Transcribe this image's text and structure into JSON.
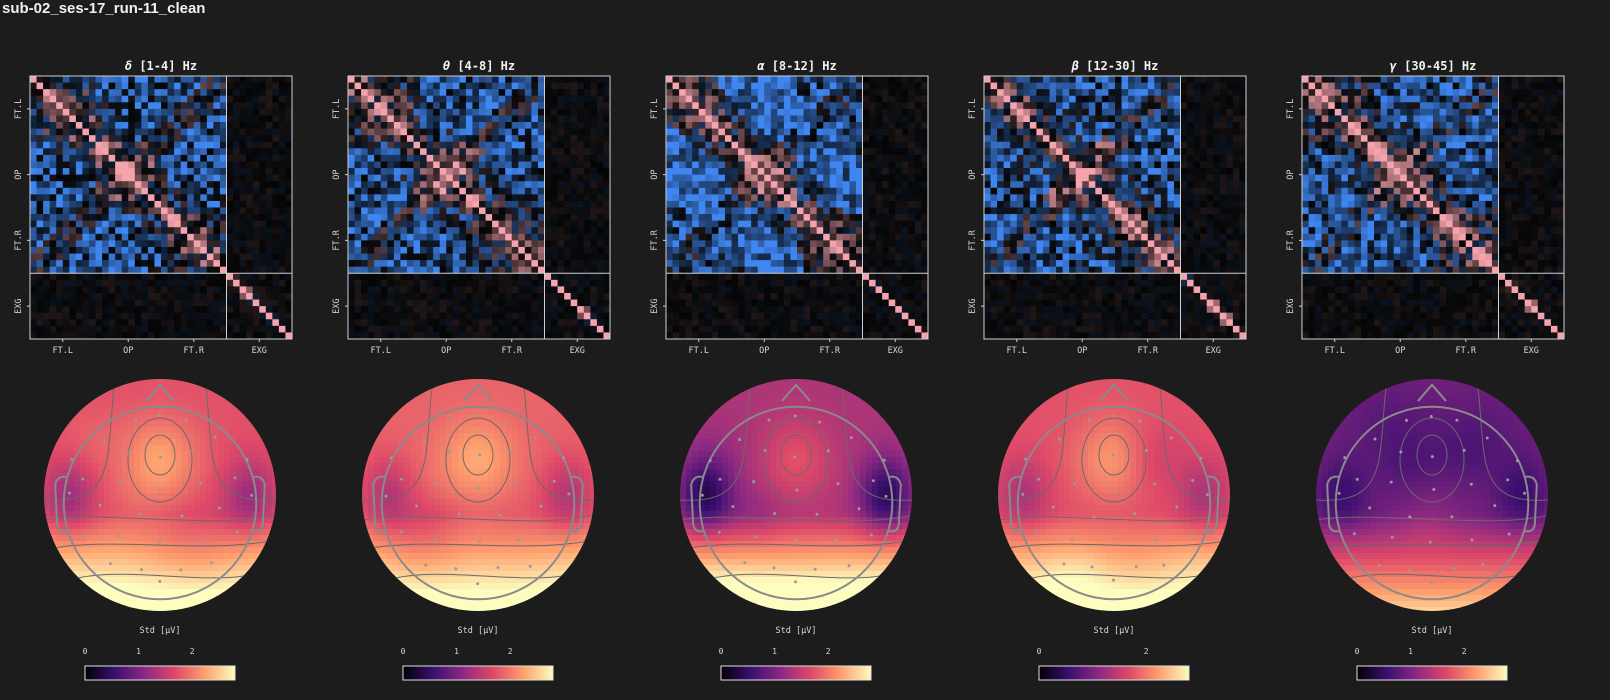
{
  "window": {
    "title": "sub-02_ses-17_run-11_clean"
  },
  "colors": {
    "background": "#1c1c1c",
    "axis": "#d8d8d8",
    "contour": "#6a6a6a",
    "sensor": "#9a9a9a",
    "head": "#8a8a8a"
  },
  "chart_data": {
    "type": "heatmap",
    "panels": [
      {
        "id": "delta",
        "title_symbol": "δ",
        "title": "[1-4] Hz",
        "matrix": {
          "type": "heatmap",
          "x_tick_labels": [
            "FT.L",
            "OP",
            "FT.R",
            "EXG"
          ],
          "y_tick_labels": [
            "FT.L",
            "OP",
            "FT.R",
            "EXG"
          ],
          "diverging_colormap": [
            "#3f86f0",
            "#050505",
            "#f5a3ac"
          ],
          "n_channels": 40,
          "n_exg_channels": 10
        },
        "topomap": {
          "type": "heatmap",
          "colorbar_label": "Std [µV]",
          "colorbar_ticks": [
            "0",
            "1",
            "2"
          ],
          "colorbar_tick_values": [
            0,
            1,
            2
          ],
          "colorbar_max": 2.8,
          "colormap": [
            "#000004",
            "#3b0f70",
            "#8c2981",
            "#de4968",
            "#fe9f6d",
            "#fcfdbf"
          ]
        }
      },
      {
        "id": "theta",
        "title_symbol": "θ",
        "title": "[4-8] Hz",
        "matrix": {
          "type": "heatmap",
          "x_tick_labels": [
            "FT.L",
            "OP",
            "FT.R",
            "EXG"
          ],
          "y_tick_labels": [
            "FT.L",
            "OP",
            "FT.R",
            "EXG"
          ],
          "diverging_colormap": [
            "#3f86f0",
            "#050505",
            "#f5a3ac"
          ],
          "n_channels": 40,
          "n_exg_channels": 10
        },
        "topomap": {
          "type": "heatmap",
          "colorbar_label": "Std [µV]",
          "colorbar_ticks": [
            "0",
            "1",
            "2"
          ],
          "colorbar_tick_values": [
            0,
            1,
            2
          ],
          "colorbar_max": 2.8,
          "colormap": [
            "#000004",
            "#3b0f70",
            "#8c2981",
            "#de4968",
            "#fe9f6d",
            "#fcfdbf"
          ]
        }
      },
      {
        "id": "alpha",
        "title_symbol": "α",
        "title": "[8-12] Hz",
        "matrix": {
          "type": "heatmap",
          "x_tick_labels": [
            "FT.L",
            "OP",
            "FT.R",
            "EXG"
          ],
          "y_tick_labels": [
            "FT.L",
            "OP",
            "FT.R",
            "EXG"
          ],
          "diverging_colormap": [
            "#3f86f0",
            "#050505",
            "#f5a3ac"
          ],
          "n_channels": 40,
          "n_exg_channels": 10
        },
        "topomap": {
          "type": "heatmap",
          "colorbar_label": "Std [µV]",
          "colorbar_ticks": [
            "0",
            "1",
            "2"
          ],
          "colorbar_tick_values": [
            0,
            1,
            2
          ],
          "colorbar_max": 2.8,
          "colormap": [
            "#000004",
            "#3b0f70",
            "#8c2981",
            "#de4968",
            "#fe9f6d",
            "#fcfdbf"
          ]
        }
      },
      {
        "id": "beta",
        "title_symbol": "β",
        "title": "[12-30] Hz",
        "matrix": {
          "type": "heatmap",
          "x_tick_labels": [
            "FT.L",
            "OP",
            "FT.R",
            "EXG"
          ],
          "y_tick_labels": [
            "FT.L",
            "OP",
            "FT.R",
            "EXG"
          ],
          "diverging_colormap": [
            "#3f86f0",
            "#050505",
            "#f5a3ac"
          ],
          "n_channels": 40,
          "n_exg_channels": 10
        },
        "topomap": {
          "type": "heatmap",
          "colorbar_label": "Std [µV]",
          "colorbar_ticks": [
            "0",
            "2"
          ],
          "colorbar_tick_values": [
            0,
            2
          ],
          "colorbar_max": 2.8,
          "colormap": [
            "#000004",
            "#3b0f70",
            "#8c2981",
            "#de4968",
            "#fe9f6d",
            "#fcfdbf"
          ]
        }
      },
      {
        "id": "gamma",
        "title_symbol": "γ",
        "title": "[30-45] Hz",
        "matrix": {
          "type": "heatmap",
          "x_tick_labels": [
            "FT.L",
            "OP",
            "FT.R",
            "EXG"
          ],
          "y_tick_labels": [
            "FT.L",
            "OP",
            "FT.R",
            "EXG"
          ],
          "diverging_colormap": [
            "#3f86f0",
            "#050505",
            "#f5a3ac"
          ],
          "n_channels": 40,
          "n_exg_channels": 10
        },
        "topomap": {
          "type": "heatmap",
          "colorbar_label": "Std [µV]",
          "colorbar_ticks": [
            "0",
            "1",
            "2"
          ],
          "colorbar_tick_values": [
            0,
            1,
            2
          ],
          "colorbar_max": 2.8,
          "colormap": [
            "#000004",
            "#3b0f70",
            "#8c2981",
            "#de4968",
            "#fe9f6d",
            "#fcfdbf"
          ]
        }
      }
    ]
  }
}
